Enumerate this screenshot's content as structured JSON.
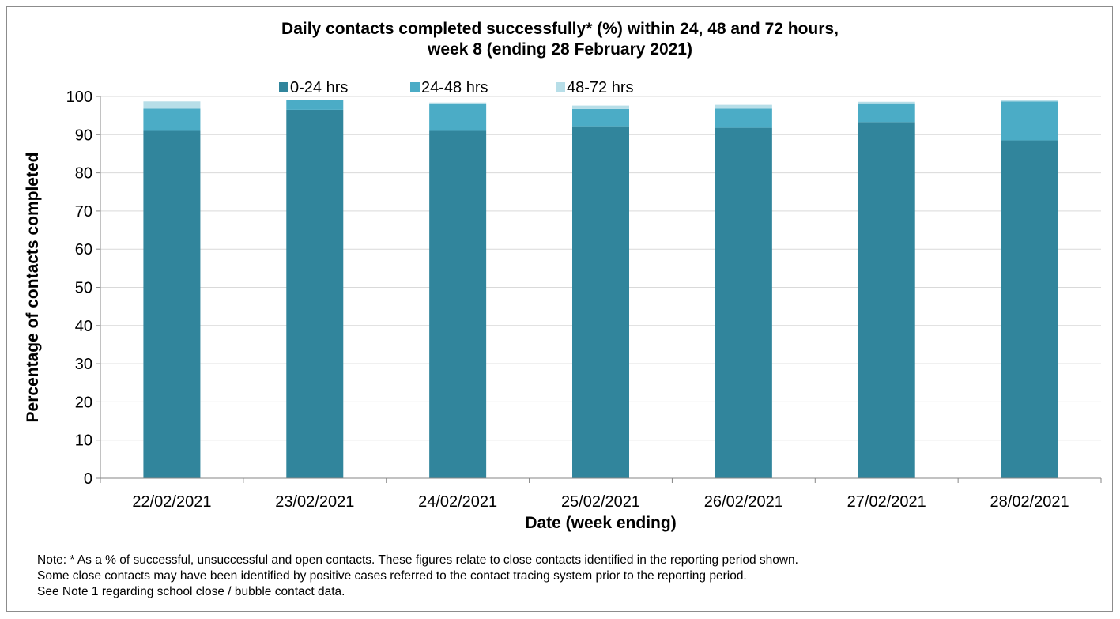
{
  "chart_data": {
    "type": "bar",
    "stacked": true,
    "title_lines": [
      "Daily contacts completed successfully* (%) within 24, 48 and 72 hours,",
      "week 8 (ending 28 February 2021)"
    ],
    "xlabel": "Date (week ending)",
    "ylabel": "Percentage of contacts completed",
    "ylim": [
      0,
      100
    ],
    "yticks": [
      0,
      10,
      20,
      30,
      40,
      50,
      60,
      70,
      80,
      90,
      100
    ],
    "grid": true,
    "legend_position": "top",
    "categories": [
      "22/02/2021",
      "23/02/2021",
      "24/02/2021",
      "25/02/2021",
      "26/02/2021",
      "27/02/2021",
      "28/02/2021"
    ],
    "series": [
      {
        "name": "0-24 hrs",
        "color": "#31859c",
        "values": [
          91.0,
          96.5,
          91.0,
          92.0,
          91.8,
          93.3,
          88.5
        ]
      },
      {
        "name": "24-48 hrs",
        "color": "#4bacc6",
        "values": [
          5.8,
          2.5,
          7.0,
          4.7,
          5.0,
          4.9,
          10.2
        ]
      },
      {
        "name": "48-72 hrs",
        "color": "#b7dee8",
        "values": [
          1.9,
          0.0,
          0.4,
          0.9,
          1.0,
          0.4,
          0.4
        ]
      }
    ]
  },
  "note": {
    "lines": [
      "Note: * As a % of successful, unsuccessful and open contacts. These figures relate to close contacts identified in the reporting period shown.",
      "Some close contacts may have been identified by positive cases referred to the contact tracing system prior to the reporting period.",
      "See Note 1 regarding school close / bubble contact data."
    ]
  }
}
